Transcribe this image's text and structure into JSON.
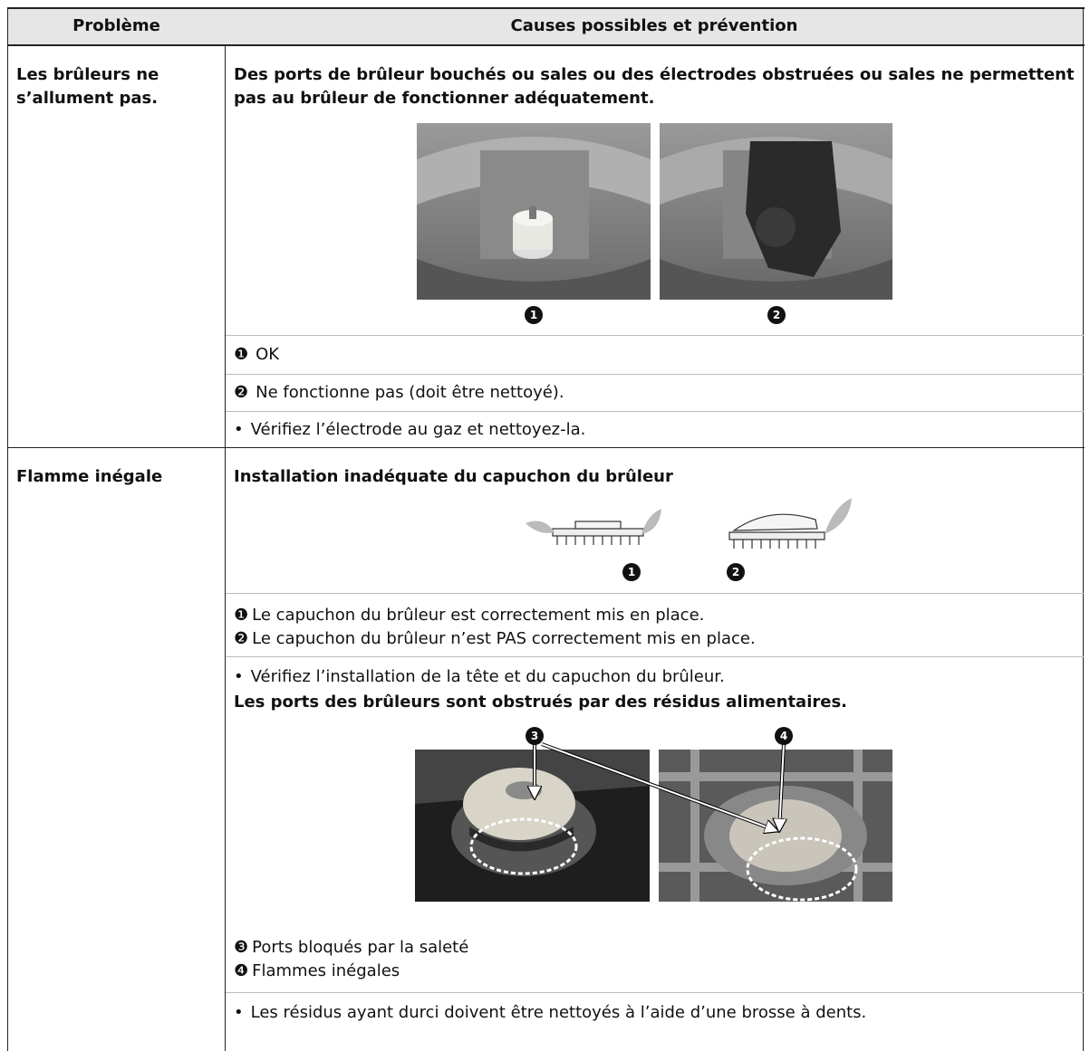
{
  "table": {
    "header": [
      "Problème",
      "Causes possibles et prévention"
    ],
    "rows": [
      {
        "problem": "Les brûleurs ne s’allument pas.",
        "heading": "Des ports de brûleur bouchés ou sales ou des électrodes obstruées ou sales ne permettent pas au brûleur de fonctionner adéquatement.",
        "callouts": [
          "1",
          "2"
        ],
        "items": [
          {
            "marker": "❶",
            "text": "OK"
          },
          {
            "marker": "❷",
            "text": "Ne fonctionne pas (doit être nettoyé)."
          }
        ],
        "note": {
          "marker": "•",
          "text": "Vérifiez l’électrode au gaz et nettoyez-la."
        }
      },
      {
        "problem": "Flamme inégale",
        "heading": "Installation inadéquate du capuchon du brûleur",
        "callouts": [
          "1",
          "2"
        ],
        "items": [
          {
            "marker": "❶",
            "text": "Le capuchon du brûleur est correctement mis en place."
          },
          {
            "marker": "❷",
            "text": "Le capuchon du brûleur n’est PAS correctement mis en place."
          }
        ],
        "note": {
          "marker": "•",
          "text": "Vérifiez l’installation de la tête et du capuchon du brûleur."
        },
        "heading2": "Les ports des brûleurs sont obstrués par des résidus alimentaires.",
        "callouts2": [
          "3",
          "4"
        ],
        "items2": [
          {
            "marker": "❸",
            "text": "Ports bloqués par la saleté"
          },
          {
            "marker": "❹",
            "text": "Flammes inégales"
          }
        ],
        "note2": {
          "marker": "•",
          "text": "Les résidus ayant durci doivent être nettoyés à l’aide d’une brosse à dents."
        }
      }
    ]
  }
}
